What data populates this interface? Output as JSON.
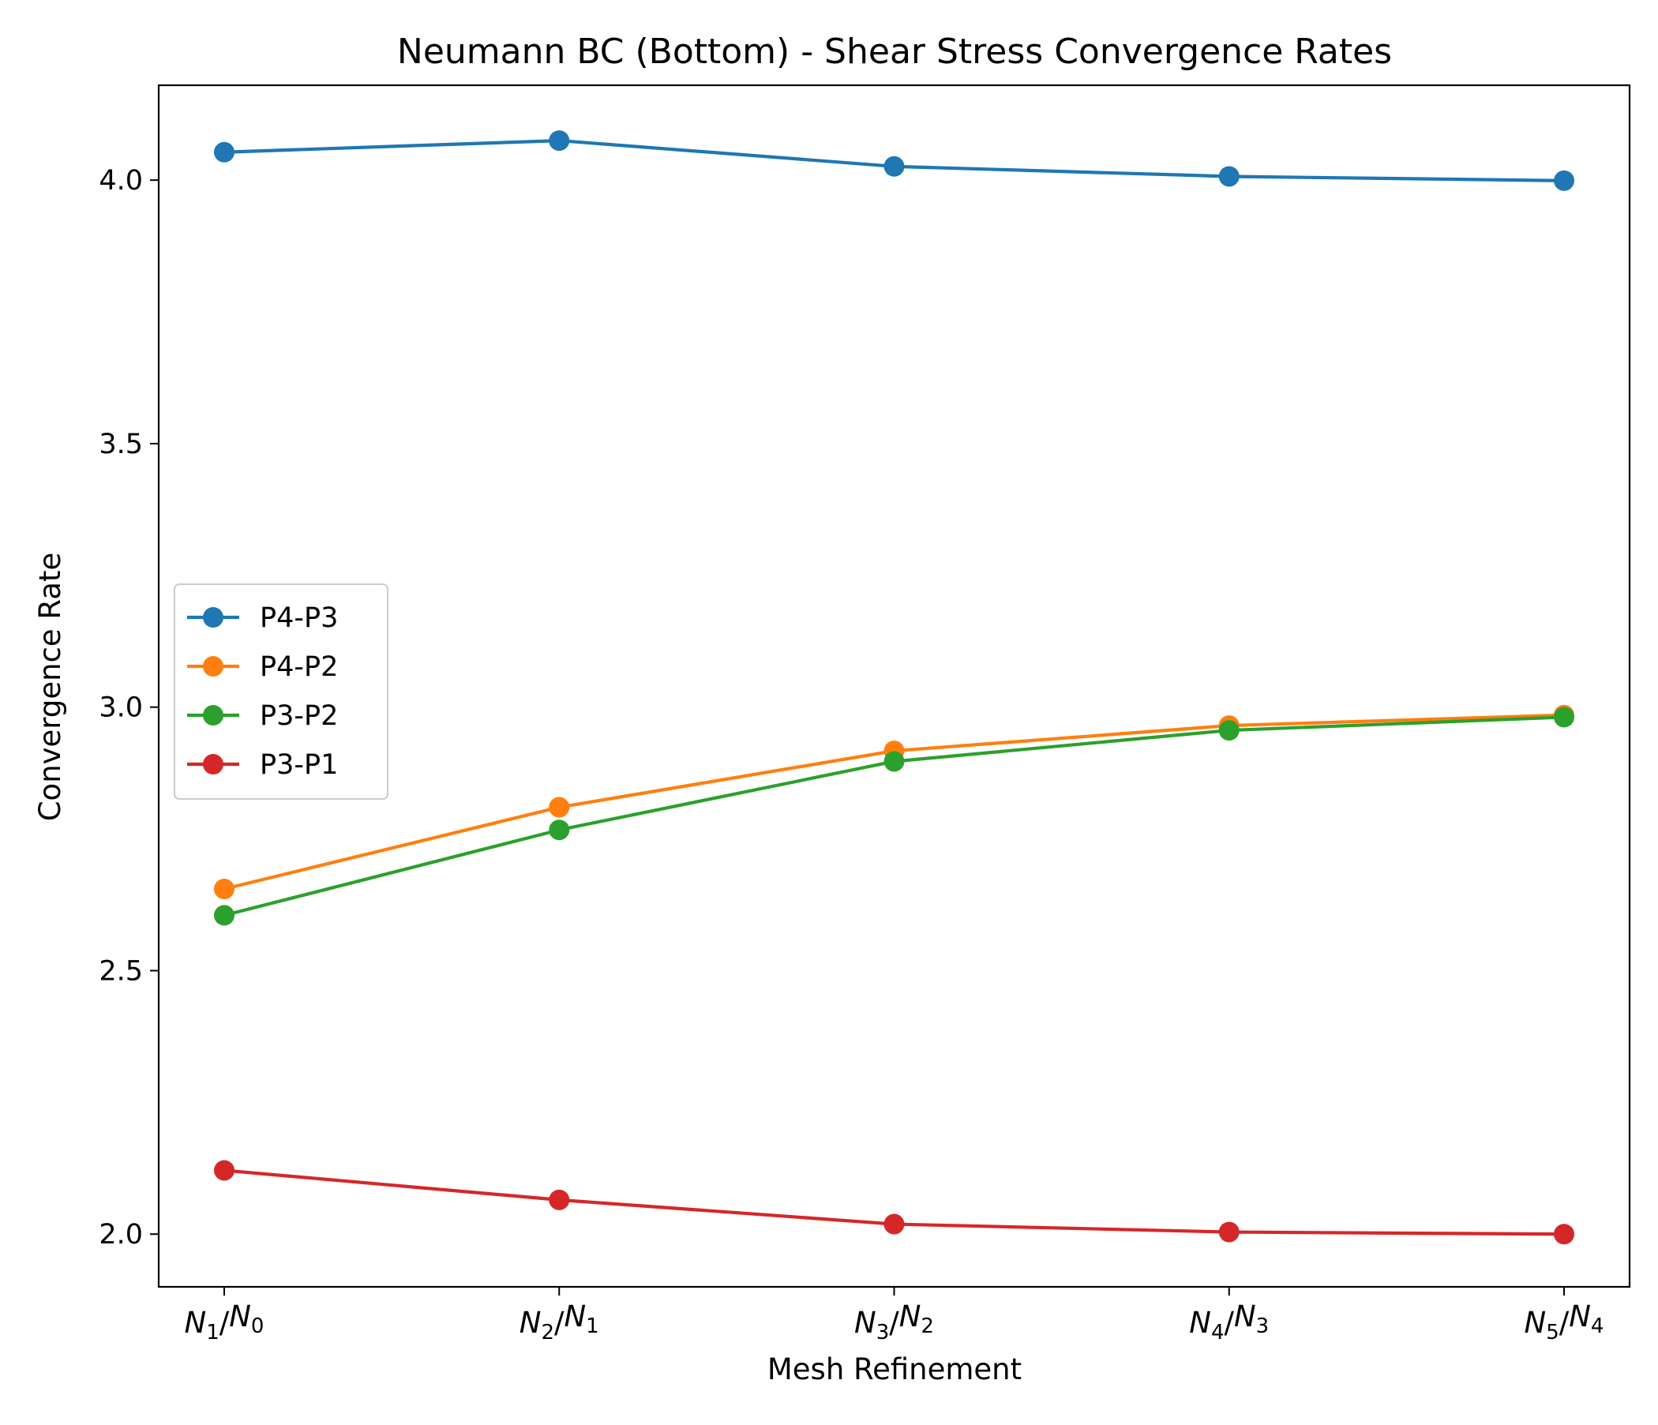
{
  "chart_data": {
    "type": "line",
    "title": "Neumann BC (Bottom) - Shear Stress Convergence Rates",
    "xlabel": "Mesh Refinement",
    "ylabel": "Convergence Rate",
    "categories": [
      {
        "num": "N",
        "num_sub": "1",
        "den": "N",
        "den_sub": "0"
      },
      {
        "num": "N",
        "num_sub": "2",
        "den": "N",
        "den_sub": "1"
      },
      {
        "num": "N",
        "num_sub": "3",
        "den": "N",
        "den_sub": "2"
      },
      {
        "num": "N",
        "num_sub": "4",
        "den": "N",
        "den_sub": "3"
      },
      {
        "num": "N",
        "num_sub": "5",
        "den": "N",
        "den_sub": "4"
      }
    ],
    "ylim": [
      1.9,
      4.18
    ],
    "yticks": [
      2.0,
      2.5,
      3.0,
      3.5,
      4.0
    ],
    "ytick_labels": [
      "2.0",
      "2.5",
      "3.0",
      "3.5",
      "4.0"
    ],
    "grid": false,
    "legend_position": "center-left",
    "series": [
      {
        "name": "P4-P3",
        "color": "#1f77b4",
        "values": [
          4.053,
          4.075,
          4.026,
          4.007,
          3.999
        ]
      },
      {
        "name": "P4-P2",
        "color": "#ff7f0e",
        "values": [
          2.655,
          2.81,
          2.917,
          2.965,
          2.985
        ]
      },
      {
        "name": "P3-P2",
        "color": "#2ca02c",
        "values": [
          2.605,
          2.767,
          2.897,
          2.956,
          2.981
        ]
      },
      {
        "name": "P3-P1",
        "color": "#d62728",
        "values": [
          2.121,
          2.065,
          2.019,
          2.004,
          2.0
        ]
      }
    ]
  }
}
